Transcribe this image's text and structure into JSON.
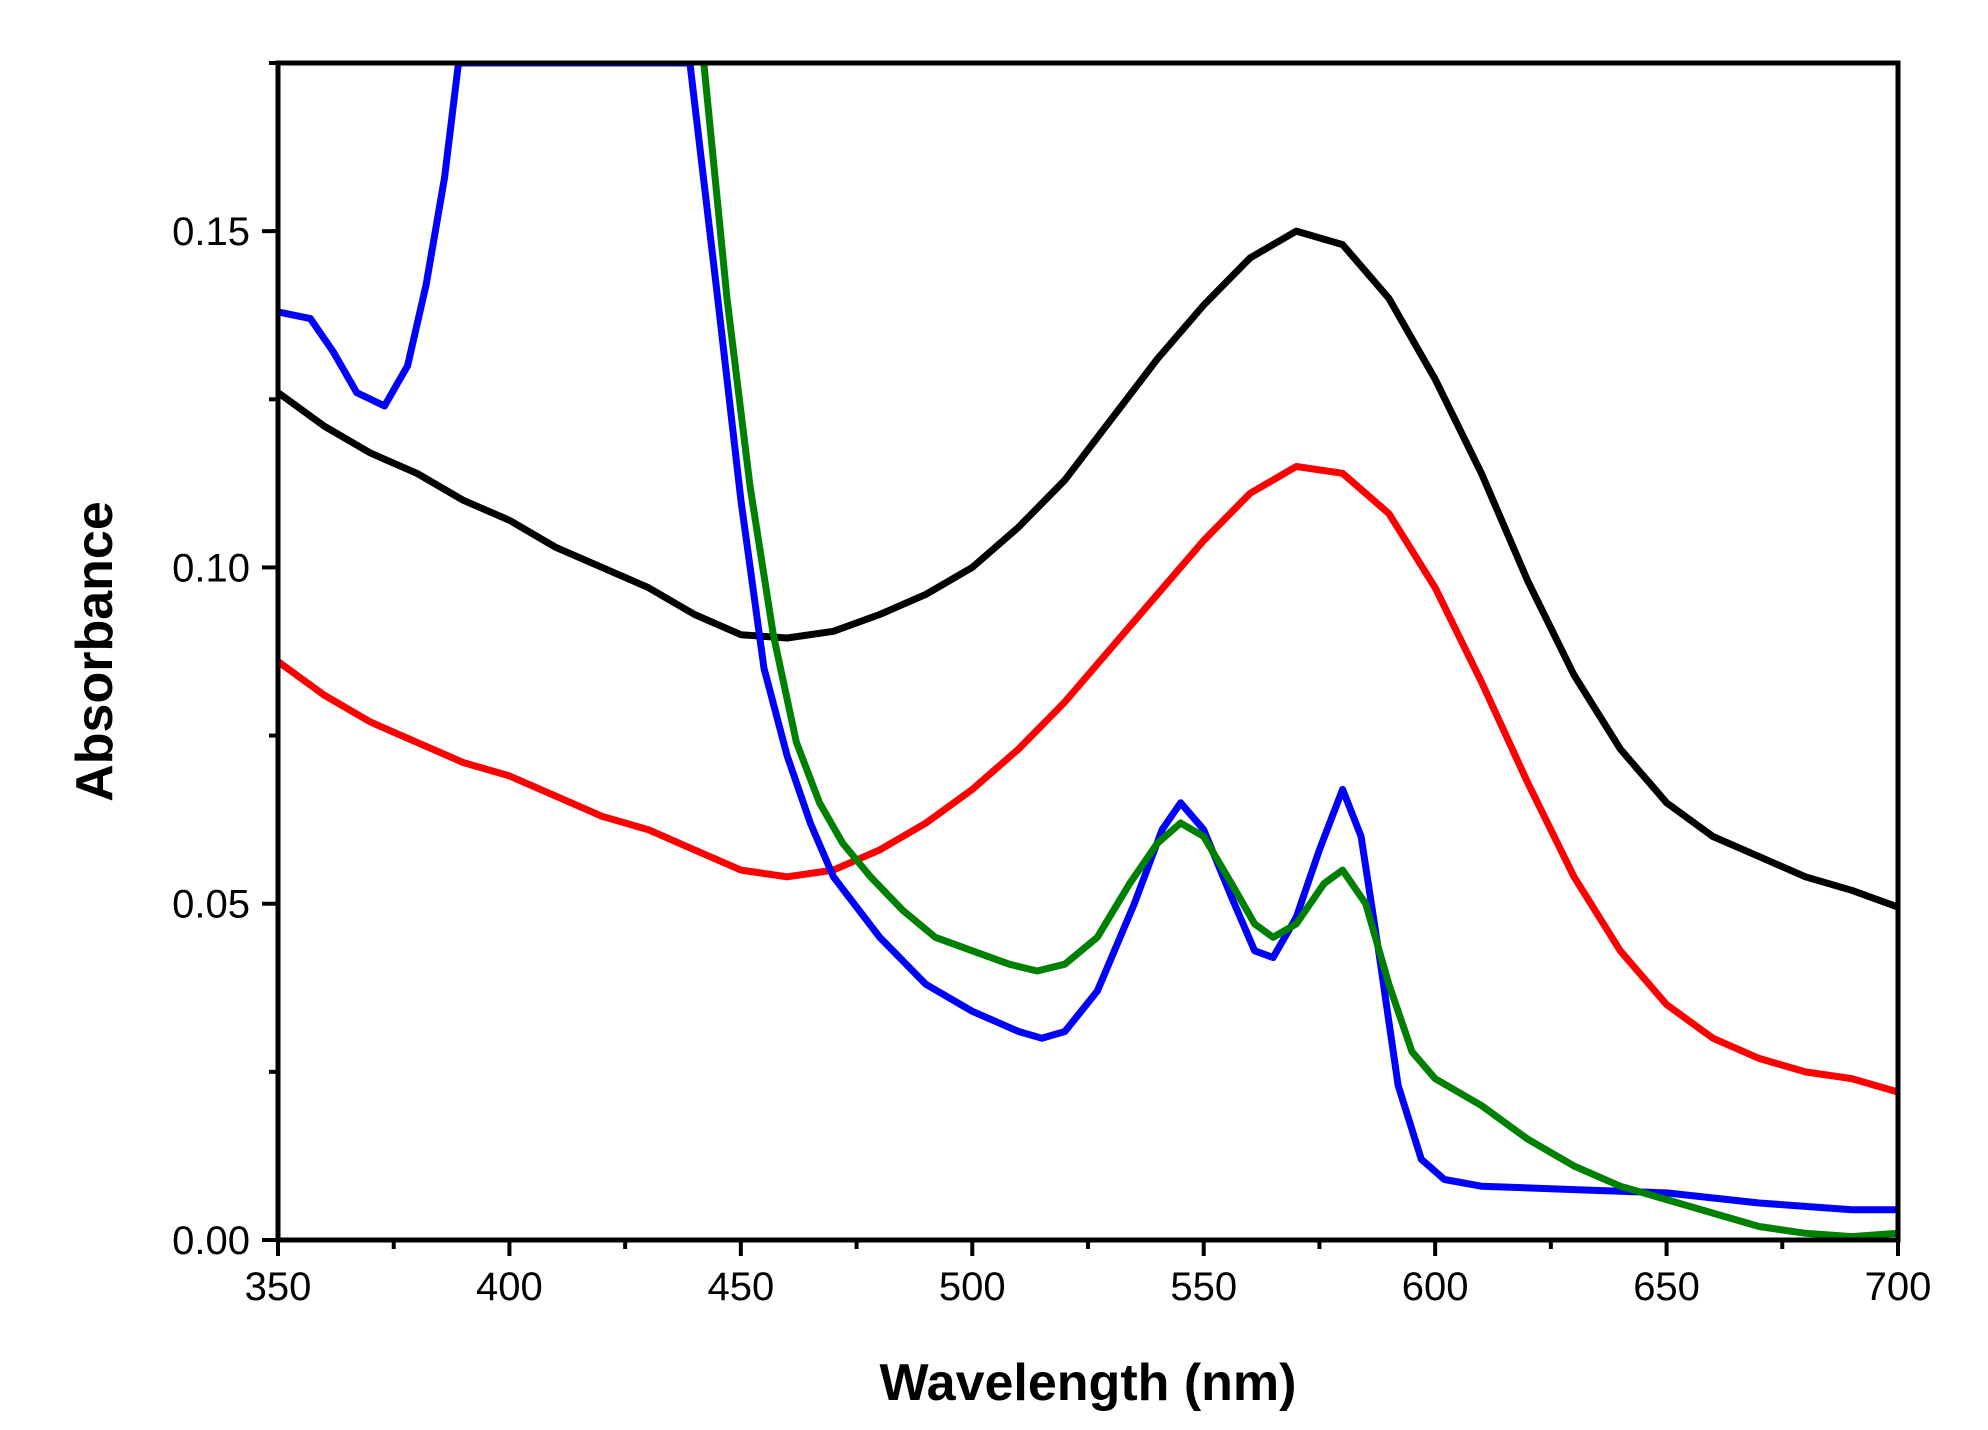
{
  "chart_data": {
    "type": "line",
    "title": "",
    "xlabel": "Wavelength (nm)",
    "ylabel": "Absorbance",
    "xlim": [
      350,
      700
    ],
    "ylim": [
      0,
      0.175
    ],
    "x_ticks": [
      350,
      400,
      450,
      500,
      550,
      600,
      650,
      700
    ],
    "x_tick_labels": [
      "350",
      "400",
      "450",
      "500",
      "550",
      "600",
      "650",
      "700"
    ],
    "y_ticks": [
      0.0,
      0.05,
      0.1,
      0.15
    ],
    "y_tick_labels": [
      "0.00",
      "0.05",
      "0.10",
      "0.15"
    ],
    "grid": false,
    "legend": "none",
    "series": [
      {
        "name": "black",
        "color": "#000000",
        "points": [
          [
            350,
            0.126
          ],
          [
            360,
            0.121
          ],
          [
            370,
            0.117
          ],
          [
            380,
            0.114
          ],
          [
            390,
            0.11
          ],
          [
            400,
            0.107
          ],
          [
            410,
            0.103
          ],
          [
            420,
            0.1
          ],
          [
            430,
            0.097
          ],
          [
            440,
            0.093
          ],
          [
            450,
            0.09
          ],
          [
            460,
            0.0895
          ],
          [
            470,
            0.0905
          ],
          [
            480,
            0.093
          ],
          [
            490,
            0.096
          ],
          [
            500,
            0.1
          ],
          [
            510,
            0.106
          ],
          [
            520,
            0.113
          ],
          [
            530,
            0.122
          ],
          [
            540,
            0.131
          ],
          [
            550,
            0.139
          ],
          [
            560,
            0.146
          ],
          [
            570,
            0.15
          ],
          [
            580,
            0.148
          ],
          [
            590,
            0.14
          ],
          [
            600,
            0.128
          ],
          [
            610,
            0.114
          ],
          [
            620,
            0.098
          ],
          [
            630,
            0.084
          ],
          [
            640,
            0.073
          ],
          [
            650,
            0.065
          ],
          [
            660,
            0.06
          ],
          [
            670,
            0.057
          ],
          [
            680,
            0.054
          ],
          [
            690,
            0.052
          ],
          [
            700,
            0.0495
          ]
        ]
      },
      {
        "name": "red",
        "color": "#ff0000",
        "points": [
          [
            350,
            0.086
          ],
          [
            360,
            0.081
          ],
          [
            370,
            0.077
          ],
          [
            380,
            0.074
          ],
          [
            390,
            0.071
          ],
          [
            400,
            0.069
          ],
          [
            410,
            0.066
          ],
          [
            420,
            0.063
          ],
          [
            430,
            0.061
          ],
          [
            440,
            0.058
          ],
          [
            450,
            0.055
          ],
          [
            460,
            0.054
          ],
          [
            470,
            0.055
          ],
          [
            480,
            0.058
          ],
          [
            490,
            0.062
          ],
          [
            500,
            0.067
          ],
          [
            510,
            0.073
          ],
          [
            520,
            0.08
          ],
          [
            530,
            0.088
          ],
          [
            540,
            0.096
          ],
          [
            550,
            0.104
          ],
          [
            560,
            0.111
          ],
          [
            570,
            0.115
          ],
          [
            580,
            0.114
          ],
          [
            590,
            0.108
          ],
          [
            600,
            0.097
          ],
          [
            610,
            0.083
          ],
          [
            620,
            0.068
          ],
          [
            630,
            0.054
          ],
          [
            640,
            0.043
          ],
          [
            650,
            0.035
          ],
          [
            660,
            0.03
          ],
          [
            670,
            0.027
          ],
          [
            680,
            0.025
          ],
          [
            690,
            0.024
          ],
          [
            700,
            0.022
          ]
        ]
      },
      {
        "name": "blue",
        "color": "#0000ff",
        "points": [
          [
            350,
            0.138
          ],
          [
            357,
            0.137
          ],
          [
            362,
            0.132
          ],
          [
            367,
            0.126
          ],
          [
            373,
            0.124
          ],
          [
            378,
            0.13
          ],
          [
            382,
            0.142
          ],
          [
            386,
            0.158
          ],
          [
            389,
            0.175
          ],
          [
            439,
            0.175
          ],
          [
            445,
            0.14
          ],
          [
            450,
            0.11
          ],
          [
            455,
            0.085
          ],
          [
            460,
            0.072
          ],
          [
            465,
            0.062
          ],
          [
            470,
            0.054
          ],
          [
            480,
            0.045
          ],
          [
            490,
            0.038
          ],
          [
            500,
            0.034
          ],
          [
            510,
            0.031
          ],
          [
            515,
            0.03
          ],
          [
            520,
            0.031
          ],
          [
            527,
            0.037
          ],
          [
            535,
            0.05
          ],
          [
            541,
            0.061
          ],
          [
            545,
            0.065
          ],
          [
            550,
            0.061
          ],
          [
            556,
            0.051
          ],
          [
            561,
            0.043
          ],
          [
            565,
            0.042
          ],
          [
            570,
            0.048
          ],
          [
            575,
            0.058
          ],
          [
            580,
            0.067
          ],
          [
            584,
            0.06
          ],
          [
            588,
            0.042
          ],
          [
            592,
            0.023
          ],
          [
            597,
            0.012
          ],
          [
            602,
            0.009
          ],
          [
            610,
            0.008
          ],
          [
            630,
            0.0075
          ],
          [
            650,
            0.007
          ],
          [
            670,
            0.0055
          ],
          [
            690,
            0.0045
          ],
          [
            700,
            0.0045
          ]
        ]
      },
      {
        "name": "green",
        "color": "#008000",
        "points": [
          [
            442,
            0.175
          ],
          [
            447,
            0.14
          ],
          [
            452,
            0.112
          ],
          [
            457,
            0.09
          ],
          [
            462,
            0.074
          ],
          [
            467,
            0.065
          ],
          [
            472,
            0.059
          ],
          [
            478,
            0.054
          ],
          [
            485,
            0.049
          ],
          [
            492,
            0.045
          ],
          [
            500,
            0.043
          ],
          [
            508,
            0.041
          ],
          [
            514,
            0.04
          ],
          [
            520,
            0.041
          ],
          [
            527,
            0.045
          ],
          [
            534,
            0.053
          ],
          [
            540,
            0.059
          ],
          [
            545,
            0.062
          ],
          [
            550,
            0.06
          ],
          [
            556,
            0.053
          ],
          [
            561,
            0.047
          ],
          [
            565,
            0.045
          ],
          [
            570,
            0.047
          ],
          [
            576,
            0.053
          ],
          [
            580,
            0.055
          ],
          [
            585,
            0.05
          ],
          [
            590,
            0.038
          ],
          [
            595,
            0.028
          ],
          [
            600,
            0.024
          ],
          [
            610,
            0.02
          ],
          [
            620,
            0.015
          ],
          [
            630,
            0.011
          ],
          [
            640,
            0.008
          ],
          [
            650,
            0.006
          ],
          [
            660,
            0.004
          ],
          [
            670,
            0.002
          ],
          [
            680,
            0.001
          ],
          [
            690,
            0.0005
          ],
          [
            700,
            0.001
          ]
        ]
      }
    ]
  }
}
